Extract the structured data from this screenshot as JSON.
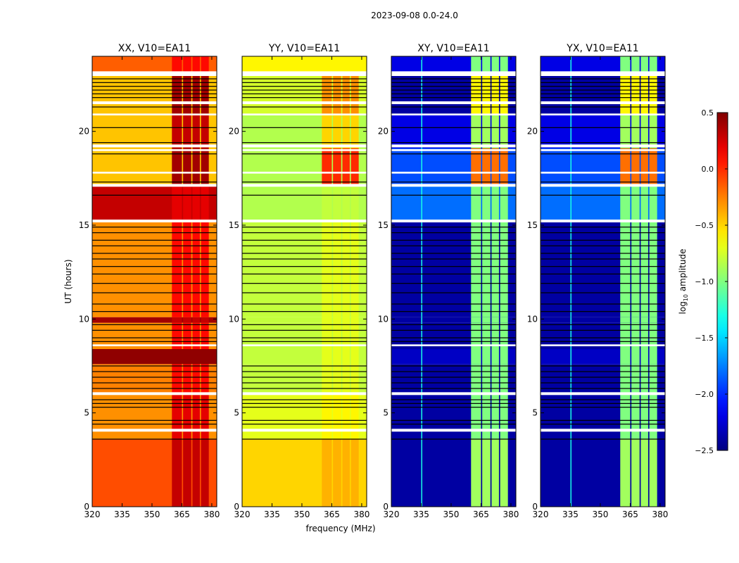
{
  "chart_data": {
    "type": "heatmap",
    "title": "2023-09-08 0.0-24.0",
    "xlabel": "frequency (MHz)",
    "ylabel": "UT (hours)",
    "xlim": [
      320,
      382.5
    ],
    "ylim": [
      0,
      24
    ],
    "xticks": [
      "320",
      "335",
      "350",
      "365",
      "380"
    ],
    "yticks": [
      "0",
      "5",
      "10",
      "15",
      "20"
    ],
    "colorbar": {
      "label_prefix": "log",
      "label_sub": "10",
      "label_suffix": " amplitude",
      "range": [
        -2.5,
        0.5
      ],
      "ticks": [
        "0.5",
        "0.0",
        "−0.5",
        "−1.0",
        "−1.5",
        "−2.0",
        "−2.5"
      ],
      "colormap": "jet"
    },
    "panels": [
      {
        "title": "XX, V10=EA11"
      },
      {
        "title": "YY, V10=EA11"
      },
      {
        "title": "XY, V10=EA11"
      },
      {
        "title": "YX, V10=EA11"
      }
    ],
    "rfi_channels_mhz": [
      [
        360,
        365
      ],
      [
        365.6,
        369.7
      ],
      [
        370.3,
        374
      ],
      [
        374.6,
        378.5
      ]
    ],
    "cross_pol_line_mhz": 335,
    "time_segments": [
      {
        "t": [
          0,
          3.6
        ],
        "bg": [
          -0.1,
          -0.5,
          -2.4,
          -2.4
        ],
        "rfi": [
          0.3,
          -0.4,
          -0.9,
          -0.9
        ]
      },
      {
        "t": [
          3.6,
          6.0
        ],
        "bg": [
          -0.3,
          -0.7,
          -2.4,
          -2.4
        ],
        "rfi": [
          0.2,
          -0.6,
          -1.0,
          -1.0
        ]
      },
      {
        "t": [
          6.0,
          7.6
        ],
        "bg": [
          -0.25,
          -0.8,
          -2.4,
          -2.4
        ],
        "rfi": [
          0.1,
          -0.7,
          -1.0,
          -1.0
        ]
      },
      {
        "t": [
          7.6,
          8.4
        ],
        "bg": [
          0.45,
          -0.8,
          -2.3,
          -2.3
        ],
        "rfi": [
          0.45,
          -0.7,
          -1.0,
          -1.0
        ]
      },
      {
        "t": [
          8.4,
          9.8
        ],
        "bg": [
          -0.3,
          -0.8,
          -2.4,
          -2.4
        ],
        "rfi": [
          0.1,
          -0.7,
          -1.0,
          -1.0
        ]
      },
      {
        "t": [
          9.8,
          10.1
        ],
        "bg": [
          0.4,
          -0.8,
          -2.4,
          -2.4
        ],
        "rfi": [
          0.3,
          -0.7,
          -1.0,
          -1.0
        ]
      },
      {
        "t": [
          10.1,
          15.3
        ],
        "bg": [
          -0.3,
          -0.8,
          -2.4,
          -2.4
        ],
        "rfi": [
          0.1,
          -0.7,
          -1.0,
          -1.0
        ]
      },
      {
        "t": [
          15.3,
          17.1
        ],
        "bg": [
          0.3,
          -0.85,
          -1.8,
          -1.8
        ],
        "rfi": [
          0.2,
          -0.8,
          -1.0,
          -1.0
        ]
      },
      {
        "t": [
          17.1,
          19.1
        ],
        "bg": [
          -0.45,
          -0.85,
          -1.9,
          -1.9
        ],
        "rfi": [
          0.4,
          0.0,
          -0.2,
          -0.2
        ]
      },
      {
        "t": [
          19.1,
          20.9
        ],
        "bg": [
          -0.45,
          -0.85,
          -2.2,
          -2.2
        ],
        "rfi": [
          0.3,
          -0.5,
          -0.9,
          -0.9
        ]
      },
      {
        "t": [
          20.9,
          23.1
        ],
        "bg": [
          -0.45,
          -0.75,
          -2.4,
          -2.4
        ],
        "rfi": [
          0.4,
          -0.3,
          -0.6,
          -0.6
        ]
      },
      {
        "t": [
          23.1,
          24.0
        ],
        "bg": [
          -0.15,
          -0.6,
          -2.2,
          -2.2
        ],
        "rfi": [
          0.1,
          -0.6,
          -1.0,
          -1.0
        ]
      }
    ],
    "flagged_hours": [
      [
        22.95,
        23.2
      ],
      [
        21.45,
        21.6
      ],
      [
        20.85,
        20.95
      ],
      [
        19.15,
        19.3
      ],
      [
        18.95,
        19.05
      ],
      [
        17.75,
        17.85
      ],
      [
        17.05,
        17.2
      ],
      [
        15.15,
        15.3
      ],
      [
        8.55,
        8.65
      ],
      [
        5.95,
        6.1
      ],
      [
        4.0,
        4.15
      ]
    ],
    "gap_lines_hours": [
      22.8,
      22.6,
      22.4,
      22.2,
      22.0,
      21.8,
      21.3,
      20.2,
      19.4,
      18.8,
      17.3,
      16.6,
      14.9,
      14.6,
      14.2,
      13.9,
      13.5,
      13.2,
      12.8,
      12.4,
      11.9,
      11.4,
      10.8,
      10.4,
      9.7,
      9.4,
      9.0,
      8.8,
      7.5,
      7.2,
      6.9,
      6.6,
      6.3,
      5.7,
      5.5,
      5.3,
      4.6,
      4.4,
      3.6
    ]
  }
}
